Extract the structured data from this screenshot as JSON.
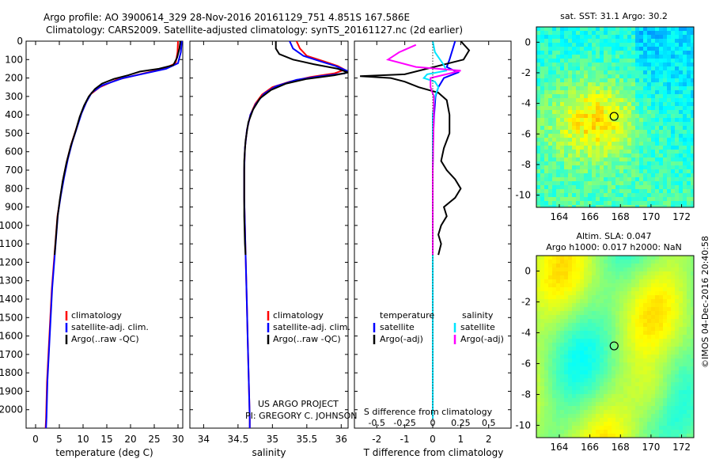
{
  "header": {
    "line1": "Argo profile: AO 3900614_329 28-Nov-2016 20161129_751 4.851S 167.586E",
    "line2": "Climatology: CARS2009. Satellite-adjusted climatology: synTS_20161127.nc (2d earlier)"
  },
  "project": {
    "line1": "US ARGO PROJECT",
    "line2": "PI: GREGORY C. JOHNSON"
  },
  "credit": "©IMOS 04-Dec-2016 20:40:58",
  "colors": {
    "climatology": "#ff0000",
    "satellite": "#0000ff",
    "argo": "#000000",
    "salinity_satellite": "#00e5ff",
    "salinity_argo": "#ff00ff",
    "map_marker": "#000000"
  },
  "chart_data": [
    {
      "id": "temperature",
      "type": "line",
      "xlabel": "temperature (deg C)",
      "ylabel": "",
      "xlim": [
        -2,
        31
      ],
      "ylim": [
        2100,
        0
      ],
      "xticks": [
        0,
        5,
        10,
        15,
        20,
        25,
        30
      ],
      "yticks": [
        0,
        100,
        200,
        300,
        400,
        500,
        600,
        700,
        800,
        900,
        1000,
        1100,
        1200,
        1300,
        1400,
        1500,
        1600,
        1700,
        1800,
        1900,
        2000
      ],
      "legend": [
        "climatology",
        "satellite-adj. clim.",
        "Argo(..raw -QC)"
      ],
      "legend_position": "lower-center",
      "series": [
        {
          "name": "climatology",
          "color": "#ff0000",
          "points": [
            [
              30.0,
              0
            ],
            [
              29.9,
              60
            ],
            [
              29.5,
              120
            ],
            [
              27.0,
              150
            ],
            [
              22.0,
              180
            ],
            [
              17.0,
              210
            ],
            [
              13.5,
              250
            ],
            [
              11.5,
              290
            ],
            [
              10.5,
              340
            ],
            [
              9.5,
              400
            ],
            [
              8.5,
              480
            ],
            [
              7.5,
              560
            ],
            [
              6.6,
              650
            ],
            [
              5.8,
              750
            ],
            [
              5.2,
              850
            ],
            [
              4.6,
              950
            ],
            [
              4.3,
              1050
            ],
            [
              4.0,
              1150
            ],
            [
              3.7,
              1250
            ],
            [
              3.4,
              1350
            ],
            [
              3.2,
              1450
            ],
            [
              3.0,
              1550
            ],
            [
              2.8,
              1650
            ],
            [
              2.6,
              1750
            ],
            [
              2.4,
              1850
            ],
            [
              2.3,
              1950
            ],
            [
              2.2,
              2050
            ],
            [
              2.1,
              2100
            ]
          ]
        },
        {
          "name": "satellite-adj. clim.",
          "color": "#0000ff",
          "points": [
            [
              30.8,
              0
            ],
            [
              30.6,
              60
            ],
            [
              30.0,
              120
            ],
            [
              27.5,
              150
            ],
            [
              23.0,
              175
            ],
            [
              18.5,
              200
            ],
            [
              14.0,
              240
            ],
            [
              11.8,
              280
            ],
            [
              10.7,
              330
            ],
            [
              9.7,
              390
            ],
            [
              8.7,
              470
            ],
            [
              7.7,
              550
            ],
            [
              6.8,
              640
            ],
            [
              6.0,
              740
            ],
            [
              5.3,
              840
            ],
            [
              4.7,
              940
            ],
            [
              4.4,
              1040
            ],
            [
              4.1,
              1140
            ],
            [
              3.8,
              1240
            ],
            [
              3.5,
              1340
            ],
            [
              3.3,
              1440
            ],
            [
              3.1,
              1540
            ],
            [
              2.9,
              1640
            ],
            [
              2.7,
              1740
            ],
            [
              2.5,
              1840
            ],
            [
              2.4,
              1940
            ],
            [
              2.3,
              2040
            ],
            [
              2.2,
              2100
            ]
          ]
        },
        {
          "name": "Argo(..raw -QC)",
          "color": "#000000",
          "points": [
            [
              30.5,
              0
            ],
            [
              30.3,
              40
            ],
            [
              29.8,
              90
            ],
            [
              29.0,
              130
            ],
            [
              26.0,
              150
            ],
            [
              22.0,
              165
            ],
            [
              19.5,
              185
            ],
            [
              16.5,
              205
            ],
            [
              14.0,
              230
            ],
            [
              12.5,
              260
            ],
            [
              11.2,
              300
            ],
            [
              10.2,
              350
            ],
            [
              9.3,
              410
            ],
            [
              8.4,
              490
            ],
            [
              7.4,
              570
            ],
            [
              6.5,
              660
            ],
            [
              5.7,
              760
            ],
            [
              5.1,
              860
            ],
            [
              4.6,
              960
            ],
            [
              4.3,
              1060
            ],
            [
              4.0,
              1160
            ]
          ]
        }
      ]
    },
    {
      "id": "salinity",
      "type": "line",
      "xlabel": "salinity",
      "ylabel": "",
      "xlim": [
        33.8,
        36.1
      ],
      "ylim": [
        2100,
        0
      ],
      "xticks": [
        34,
        34.5,
        35,
        35.5,
        36
      ],
      "legend": [
        "climatology",
        "satellite-adj. clim.",
        "Argo(..raw -QC)"
      ],
      "legend_position": "lower-center",
      "series": [
        {
          "name": "climatology",
          "color": "#ff0000",
          "points": [
            [
              35.35,
              0
            ],
            [
              35.4,
              40
            ],
            [
              35.5,
              80
            ],
            [
              35.75,
              110
            ],
            [
              35.95,
              135
            ],
            [
              36.05,
              155
            ],
            [
              35.9,
              175
            ],
            [
              35.55,
              195
            ],
            [
              35.25,
              220
            ],
            [
              35.0,
              250
            ],
            [
              34.85,
              290
            ],
            [
              34.75,
              340
            ],
            [
              34.68,
              400
            ],
            [
              34.63,
              480
            ],
            [
              34.6,
              580
            ],
            [
              34.59,
              700
            ],
            [
              34.59,
              850
            ],
            [
              34.6,
              1000
            ],
            [
              34.61,
              1150
            ],
            [
              34.62,
              1300
            ],
            [
              34.63,
              1450
            ],
            [
              34.64,
              1600
            ],
            [
              34.65,
              1750
            ],
            [
              34.66,
              1900
            ],
            [
              34.67,
              2050
            ],
            [
              34.67,
              2100
            ]
          ]
        },
        {
          "name": "satellite-adj. clim.",
          "color": "#0000ff",
          "points": [
            [
              35.25,
              0
            ],
            [
              35.3,
              40
            ],
            [
              35.45,
              80
            ],
            [
              35.7,
              110
            ],
            [
              35.92,
              135
            ],
            [
              36.08,
              160
            ],
            [
              36.05,
              175
            ],
            [
              35.7,
              190
            ],
            [
              35.35,
              210
            ],
            [
              35.05,
              245
            ],
            [
              34.88,
              285
            ],
            [
              34.76,
              340
            ],
            [
              34.68,
              400
            ],
            [
              34.63,
              480
            ],
            [
              34.6,
              580
            ],
            [
              34.59,
              700
            ],
            [
              34.59,
              850
            ],
            [
              34.6,
              1000
            ],
            [
              34.61,
              1150
            ],
            [
              34.62,
              1300
            ],
            [
              34.63,
              1450
            ],
            [
              34.64,
              1600
            ],
            [
              34.65,
              1750
            ],
            [
              34.66,
              1900
            ],
            [
              34.67,
              2050
            ],
            [
              34.67,
              2100
            ]
          ]
        },
        {
          "name": "Argo(..raw -QC)",
          "color": "#000000",
          "points": [
            [
              35.05,
              0
            ],
            [
              35.05,
              40
            ],
            [
              35.1,
              70
            ],
            [
              35.3,
              100
            ],
            [
              35.6,
              125
            ],
            [
              35.95,
              150
            ],
            [
              36.1,
              170
            ],
            [
              35.9,
              185
            ],
            [
              35.5,
              205
            ],
            [
              35.2,
              230
            ],
            [
              34.98,
              265
            ],
            [
              34.82,
              310
            ],
            [
              34.72,
              370
            ],
            [
              34.65,
              440
            ],
            [
              34.61,
              540
            ],
            [
              34.59,
              650
            ],
            [
              34.59,
              800
            ],
            [
              34.59,
              950
            ],
            [
              34.6,
              1100
            ],
            [
              34.61,
              1160
            ]
          ]
        }
      ]
    },
    {
      "id": "difference",
      "type": "line",
      "xlabel": "T difference from climatology",
      "x2label": "S difference from climatology",
      "xlim": [
        -2.8,
        2.8
      ],
      "x2lim": [
        -0.7,
        0.7
      ],
      "ylim": [
        2100,
        0
      ],
      "xticks": [
        -2,
        -1,
        0,
        1,
        2
      ],
      "x2ticks": [
        -0.5,
        -0.25,
        0,
        0.25,
        0.5
      ],
      "x2ticklabels": [
        "-0.5",
        "-0.25",
        "0",
        "0.25",
        "0.5"
      ],
      "legend_headers": [
        "temperature",
        "salinity"
      ],
      "legend": [
        "satellite",
        "Argo(-adj)",
        "satellite",
        "Argo(-adj)"
      ],
      "legend_position": "lower-center",
      "series": [
        {
          "name": "satellite",
          "group": "temperature",
          "axis": "T",
          "color": "#0000ff",
          "points": [
            [
              0.8,
              0
            ],
            [
              0.7,
              50
            ],
            [
              0.6,
              100
            ],
            [
              0.5,
              140
            ],
            [
              0.9,
              170
            ],
            [
              0.4,
              200
            ],
            [
              0.2,
              250
            ],
            [
              0.1,
              300
            ],
            [
              0.05,
              400
            ],
            [
              0.02,
              500
            ],
            [
              0,
              700
            ],
            [
              0,
              900
            ],
            [
              0,
              1100
            ],
            [
              0,
              1300
            ],
            [
              0,
              1500
            ],
            [
              0,
              1700
            ],
            [
              0,
              1900
            ],
            [
              0,
              2050
            ]
          ]
        },
        {
          "name": "Argo(-adj)",
          "group": "temperature",
          "axis": "T",
          "color": "#000000",
          "points": [
            [
              1.0,
              0
            ],
            [
              1.3,
              50
            ],
            [
              1.1,
              100
            ],
            [
              -1.0,
              180
            ],
            [
              -2.6,
              190
            ],
            [
              -1.5,
              200
            ],
            [
              -1.0,
              220
            ],
            [
              -0.5,
              250
            ],
            [
              0.2,
              280
            ],
            [
              0.5,
              320
            ],
            [
              0.6,
              400
            ],
            [
              0.6,
              500
            ],
            [
              0.4,
              580
            ],
            [
              0.3,
              650
            ],
            [
              0.5,
              700
            ],
            [
              0.8,
              750
            ],
            [
              1.0,
              800
            ],
            [
              0.8,
              850
            ],
            [
              0.4,
              900
            ],
            [
              0.5,
              950
            ],
            [
              0.3,
              1000
            ],
            [
              0.2,
              1050
            ],
            [
              0.3,
              1100
            ],
            [
              0.2,
              1160
            ]
          ]
        },
        {
          "name": "satellite",
          "group": "salinity",
          "axis": "S",
          "color": "#00e5ff",
          "points": [
            [
              0,
              0
            ],
            [
              0.02,
              60
            ],
            [
              0.1,
              130
            ],
            [
              0.12,
              160
            ],
            [
              -0.05,
              180
            ],
            [
              -0.08,
              200
            ],
            [
              0.02,
              220
            ],
            [
              0.05,
              250
            ],
            [
              0.02,
              300
            ],
            [
              0,
              400
            ],
            [
              0,
              700
            ],
            [
              0,
              1000
            ],
            [
              0,
              1300
            ],
            [
              0,
              1600
            ],
            [
              0,
              1900
            ],
            [
              0,
              2050
            ]
          ]
        },
        {
          "name": "Argo(-adj)",
          "group": "salinity",
          "axis": "S",
          "color": "#ff00ff",
          "points": [
            [
              -0.15,
              20
            ],
            [
              -0.3,
              60
            ],
            [
              -0.4,
              100
            ],
            [
              -0.15,
              140
            ],
            [
              0.25,
              160
            ],
            [
              0.12,
              180
            ],
            [
              -0.02,
              200
            ],
            [
              -0.02,
              250
            ],
            [
              0.01,
              300
            ],
            [
              0.01,
              400
            ],
            [
              0,
              700
            ],
            [
              0,
              1000
            ],
            [
              0,
              1160
            ]
          ]
        }
      ]
    },
    {
      "id": "sst_map",
      "type": "heatmap",
      "title": "sat. SST: 31.1  Argo: 30.2",
      "xlim": [
        162.5,
        172.8
      ],
      "ylim": [
        -10.8,
        1.0
      ],
      "xticks": [
        164,
        166,
        168,
        170,
        172
      ],
      "yticks": [
        0,
        -2,
        -4,
        -6,
        -8,
        -10
      ],
      "marker": [
        167.586,
        -4.851
      ],
      "colormap": "jet"
    },
    {
      "id": "sla_map",
      "type": "heatmap",
      "title": "Altim. SLA: 0.047",
      "subtitle": "Argo h1000: 0.017  h2000: NaN",
      "xlim": [
        162.5,
        172.8
      ],
      "ylim": [
        -10.8,
        1.0
      ],
      "xticks": [
        164,
        166,
        168,
        170,
        172
      ],
      "yticks": [
        0,
        -2,
        -4,
        -6,
        -8,
        -10
      ],
      "marker": [
        167.586,
        -4.851
      ],
      "colormap": "jet"
    }
  ]
}
